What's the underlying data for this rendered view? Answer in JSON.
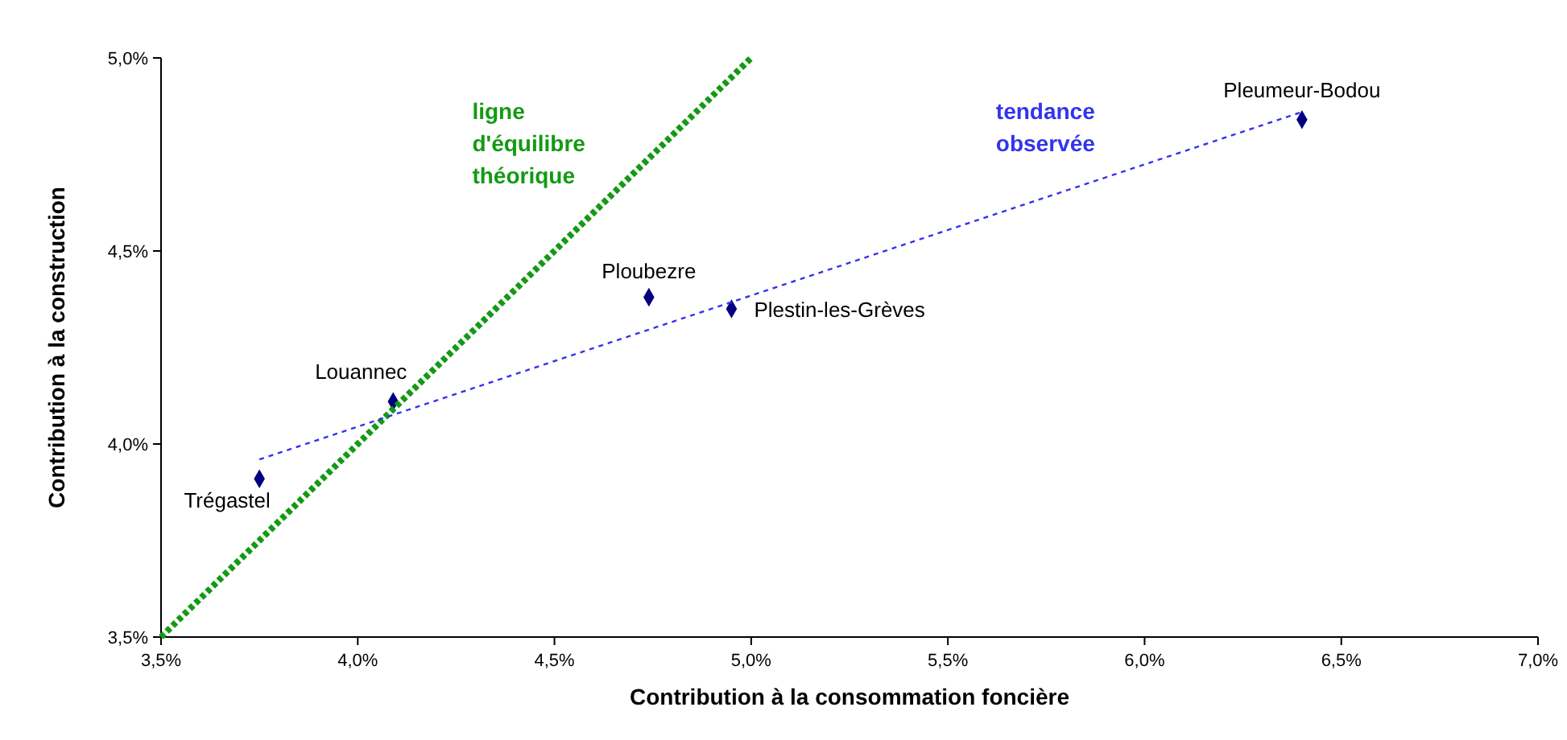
{
  "chart_data": {
    "type": "scatter",
    "xlabel": "Contribution à la consommation foncière",
    "ylabel": "Contribution à la construction",
    "xlim": [
      3.5,
      7.0
    ],
    "ylim": [
      3.5,
      5.0
    ],
    "xticks": [
      {
        "value": 3.5,
        "label": "3,5%"
      },
      {
        "value": 4.0,
        "label": "4,0%"
      },
      {
        "value": 4.5,
        "label": "4,5%"
      },
      {
        "value": 5.0,
        "label": "5,0%"
      },
      {
        "value": 5.5,
        "label": "5,5%"
      },
      {
        "value": 6.0,
        "label": "6,0%"
      },
      {
        "value": 6.5,
        "label": "6,5%"
      },
      {
        "value": 7.0,
        "label": "7,0%"
      }
    ],
    "yticks": [
      {
        "value": 3.5,
        "label": "3,5%"
      },
      {
        "value": 4.0,
        "label": "4,0%"
      },
      {
        "value": 4.5,
        "label": "4,5%"
      },
      {
        "value": 5.0,
        "label": "5,0%"
      }
    ],
    "grid": false,
    "series": [
      {
        "color": "#000080",
        "marker": "diamond",
        "x": [
          3.75,
          4.09,
          4.74,
          4.95,
          6.4
        ],
        "values": [
          3.91,
          4.11,
          4.38,
          4.35,
          4.84
        ]
      },
      {
        "type": "line",
        "name": "ligne d'équilibre théorique",
        "color": "#139a13",
        "line_style": "dotted",
        "marker": "none",
        "x": [
          3.5,
          5.0
        ],
        "values": [
          3.5,
          5.0
        ]
      },
      {
        "type": "line",
        "name": "tendance observée",
        "color": "#3333ee",
        "line_style": "dashed",
        "marker": "none",
        "x": [
          3.75,
          6.4
        ],
        "values": [
          3.96,
          4.86
        ]
      }
    ],
    "annotations": [
      {
        "text": "Trégastel",
        "x": 3.75,
        "y": 3.91
      },
      {
        "text": "Louannec",
        "x": 4.09,
        "y": 4.11
      },
      {
        "text": "Ploubezre",
        "x": 4.74,
        "y": 4.38
      },
      {
        "text": "Plestin-les-Grèves",
        "x": 4.95,
        "y": 4.35
      },
      {
        "text": "Pleumeur-Bodou",
        "x": 6.4,
        "y": 4.84
      }
    ]
  }
}
